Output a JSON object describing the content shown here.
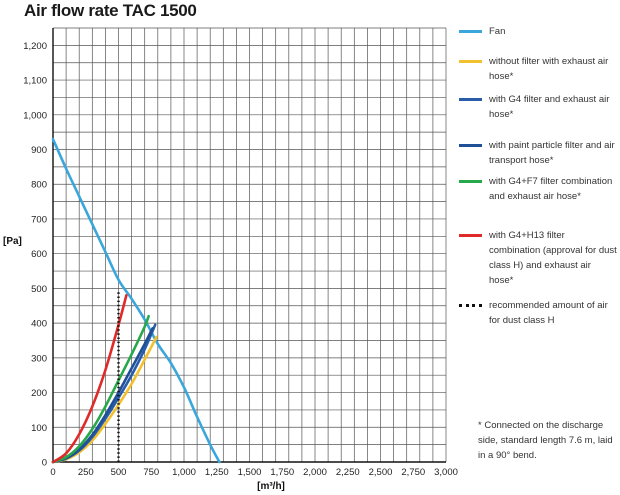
{
  "chart_data": {
    "type": "line",
    "title": "Air flow rate TAC 1500",
    "xlabel": "[m³/h]",
    "ylabel": "[Pa]",
    "xlim": [
      0,
      3000
    ],
    "ylim": [
      0,
      1250
    ],
    "xticks": [
      "0",
      "250",
      "500",
      "750",
      "1,000",
      "1,250",
      "1,500",
      "1,750",
      "2,000",
      "2,250",
      "2,500",
      "2,750",
      "3,000"
    ],
    "yticks": [
      "0",
      "100",
      "200",
      "300",
      "400",
      "500",
      "600",
      "700",
      "800",
      "900",
      "1,000",
      "1,100",
      "1,200"
    ],
    "grid": true,
    "legend_position": "right",
    "series": [
      {
        "name": "Fan",
        "color": "#3aa6dc",
        "style": "solid",
        "x": [
          0,
          100,
          200,
          300,
          400,
          500,
          600,
          700,
          800,
          900,
          1000,
          1100,
          1200,
          1270
        ],
        "y": [
          930,
          845,
          765,
          685,
          605,
          525,
          470,
          410,
          340,
          285,
          215,
          130,
          50,
          0
        ]
      },
      {
        "name": "without filter with exhaust air hose*",
        "color": "#f2c12e",
        "style": "solid",
        "x": [
          0,
          100,
          200,
          300,
          400,
          500,
          600,
          700,
          790
        ],
        "y": [
          0,
          8,
          28,
          62,
          110,
          165,
          225,
          295,
          360
        ]
      },
      {
        "name": "with G4 filter and exhaust air hose*",
        "color": "#2a5da8",
        "style": "solid",
        "x": [
          0,
          100,
          200,
          300,
          400,
          500,
          600,
          700,
          780
        ],
        "y": [
          0,
          10,
          33,
          72,
          125,
          185,
          250,
          325,
          395
        ]
      },
      {
        "name": "with paint particle filter and air transport hose*",
        "color": "#1f4f96",
        "style": "solid",
        "x": [
          0,
          100,
          200,
          300,
          400,
          500,
          600,
          700,
          760
        ],
        "y": [
          0,
          11,
          36,
          78,
          135,
          200,
          270,
          340,
          385
        ]
      },
      {
        "name": "with G4+F7 filter combination and exhaust air hose*",
        "color": "#27a84a",
        "style": "solid",
        "x": [
          0,
          100,
          200,
          300,
          400,
          500,
          600,
          700,
          730
        ],
        "y": [
          0,
          14,
          45,
          95,
          160,
          235,
          310,
          390,
          420
        ]
      },
      {
        "name": "with G4+H13 filter combination (approval for dust class H) and exhaust air hose*",
        "color": "#e02a2a",
        "style": "solid",
        "x": [
          0,
          100,
          200,
          300,
          400,
          500,
          560
        ],
        "y": [
          0,
          25,
          80,
          160,
          265,
          395,
          480
        ]
      },
      {
        "name": "recommended amount of air for dust class H",
        "color": "#111111",
        "style": "dotted",
        "x": [
          500,
          500
        ],
        "y": [
          0,
          495
        ]
      }
    ]
  },
  "footnote": "* Connected on the discharge side, standard length 7.6 m, laid in a 90° bend."
}
